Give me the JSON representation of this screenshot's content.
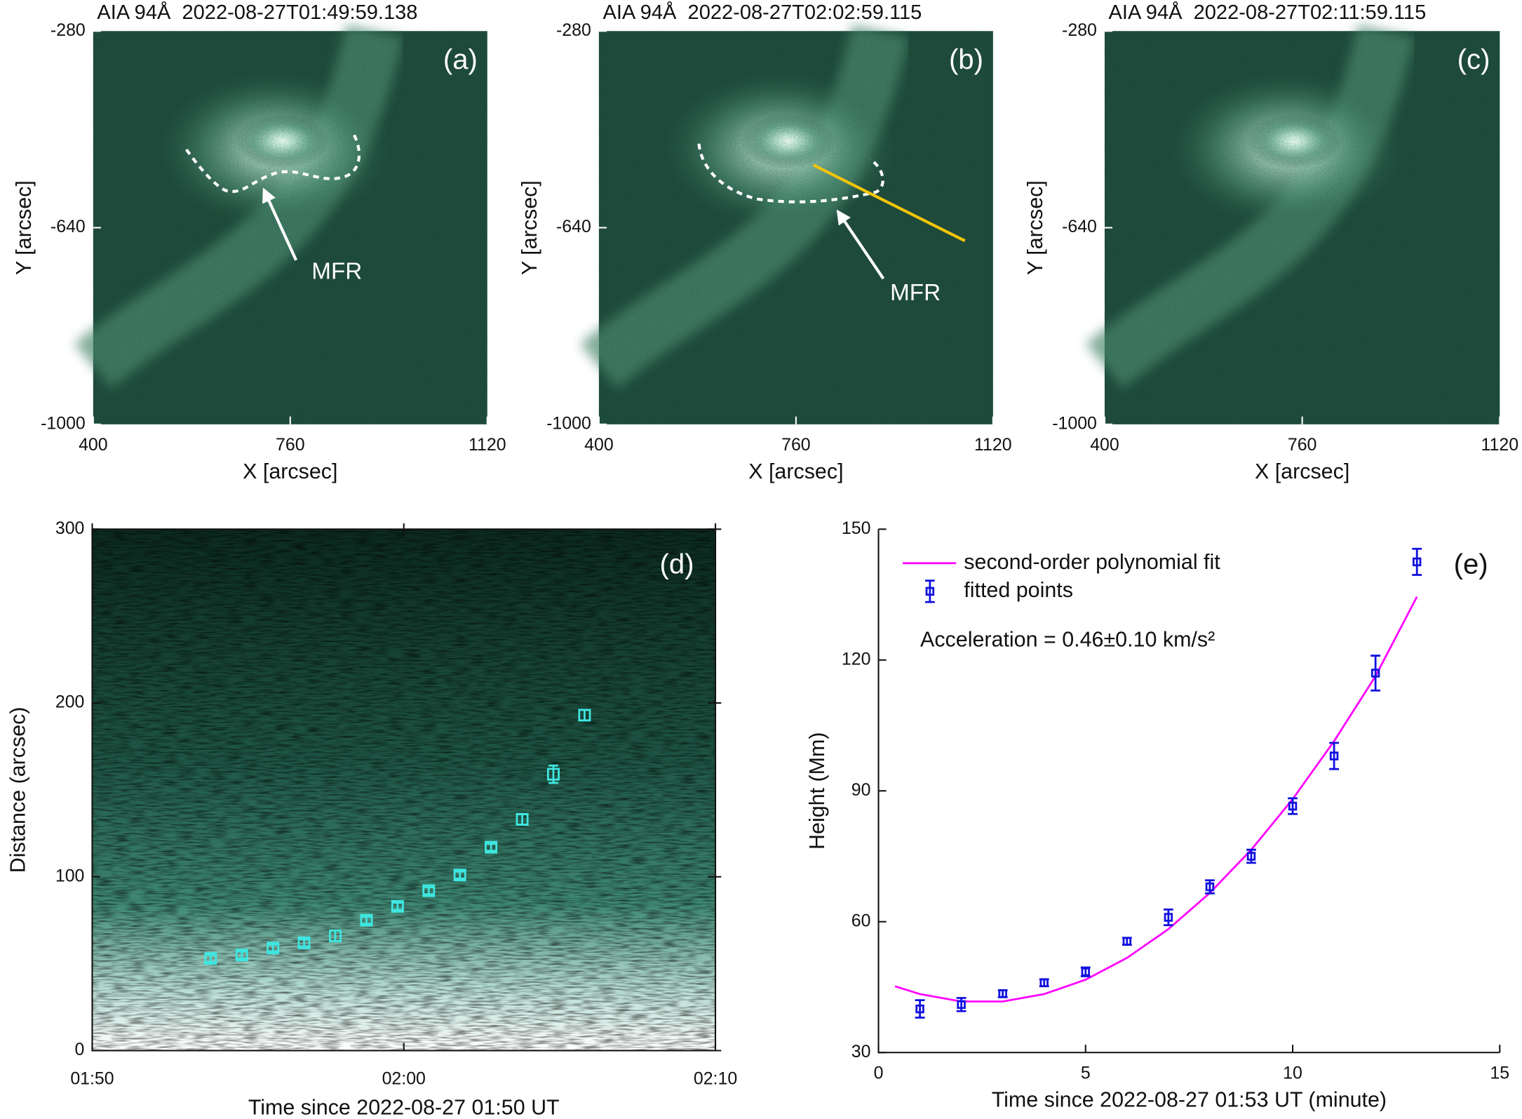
{
  "chart_data": [
    {
      "type": "image",
      "title": "AIA 94Å  2022-08-27T01:49:59.138",
      "label": "(a)",
      "annotation": "MFR",
      "xlabel": "X [arcsec]",
      "ylabel": "Y [arcsec]",
      "xlim": [
        400,
        1120
      ],
      "xticks": [
        400,
        760,
        1120
      ],
      "ylim": [
        -1000,
        -280
      ],
      "yticks": [
        -1000,
        -640,
        -280
      ]
    },
    {
      "type": "image",
      "title": "AIA 94Å  2022-08-27T02:02:59.115",
      "label": "(b)",
      "annotation": "MFR",
      "xlabel": "X [arcsec]",
      "ylabel": "Y [arcsec]",
      "xlim": [
        400,
        1120
      ],
      "xticks": [
        400,
        760,
        1120
      ],
      "ylim": [
        -1000,
        -280
      ],
      "yticks": [
        -1000,
        -640,
        -280
      ]
    },
    {
      "type": "image",
      "title": "AIA 94Å  2022-08-27T02:11:59.115",
      "label": "(c)",
      "xlabel": "X [arcsec]",
      "ylabel": "Y [arcsec]",
      "xlim": [
        400,
        1120
      ],
      "xticks": [
        400,
        760,
        1120
      ],
      "ylim": [
        -1000,
        -280
      ],
      "yticks": [
        -1000,
        -640,
        -280
      ]
    },
    {
      "type": "timedistance",
      "label": "(d)",
      "xlabel": "Time since 2022-08-27 01:50 UT",
      "ylabel": "Distance (arcsec)",
      "xlim": [
        0,
        20
      ],
      "xticks": [
        {
          "value": 0,
          "label": "01:50"
        },
        {
          "value": 10,
          "label": "02:00"
        },
        {
          "value": 20,
          "label": "02:10"
        }
      ],
      "ylim": [
        0,
        300
      ],
      "yticks": [
        0,
        100,
        200,
        300
      ],
      "color": "#3fe6e0",
      "x": [
        3.8,
        4.8,
        5.8,
        6.8,
        7.8,
        8.8,
        9.8,
        10.8,
        11.8,
        12.8,
        13.8,
        14.8,
        15.8
      ],
      "values": [
        53,
        55,
        59,
        62,
        66,
        75,
        83,
        92,
        101,
        117,
        133,
        159,
        193
      ],
      "errors": [
        2,
        2,
        2,
        2,
        3,
        2,
        2,
        2,
        2,
        2,
        3,
        5,
        3
      ]
    },
    {
      "type": "fit",
      "label": "(e)",
      "xlabel": "Time since 2022-08-27 01:53 UT (minute)",
      "ylabel": "Height (Mm)",
      "annotation": "Acceleration = 0.46±0.10 km/s²",
      "xlim": [
        0,
        15
      ],
      "xticks": [
        0,
        5,
        10,
        15
      ],
      "ylim": [
        30,
        150
      ],
      "yticks": [
        30,
        60,
        90,
        120,
        150
      ],
      "series": [
        {
          "name": "second-order polynomial fit",
          "color": "#ff00ff",
          "x": [
            0.4,
            1,
            2,
            3,
            4,
            5,
            6,
            7,
            8,
            9,
            10,
            11,
            12,
            13
          ],
          "values": [
            45.2,
            43.4,
            41.7,
            41.7,
            43.4,
            46.7,
            51.7,
            58.3,
            66.6,
            76.5,
            88.1,
            101.4,
            116.3,
            134.5
          ]
        },
        {
          "name": "fitted points",
          "color": "#1010e0",
          "x": [
            1,
            2,
            3,
            4,
            5,
            6,
            7,
            8,
            9,
            10,
            11,
            12,
            13
          ],
          "values": [
            40,
            41,
            43.5,
            46,
            48.5,
            55.5,
            61,
            68,
            75,
            86.5,
            98,
            117,
            142.5
          ],
          "errors": [
            2,
            1.5,
            0.8,
            0.8,
            1,
            0.8,
            1.8,
            1.5,
            1.5,
            1.8,
            3,
            4,
            3
          ]
        }
      ]
    }
  ]
}
